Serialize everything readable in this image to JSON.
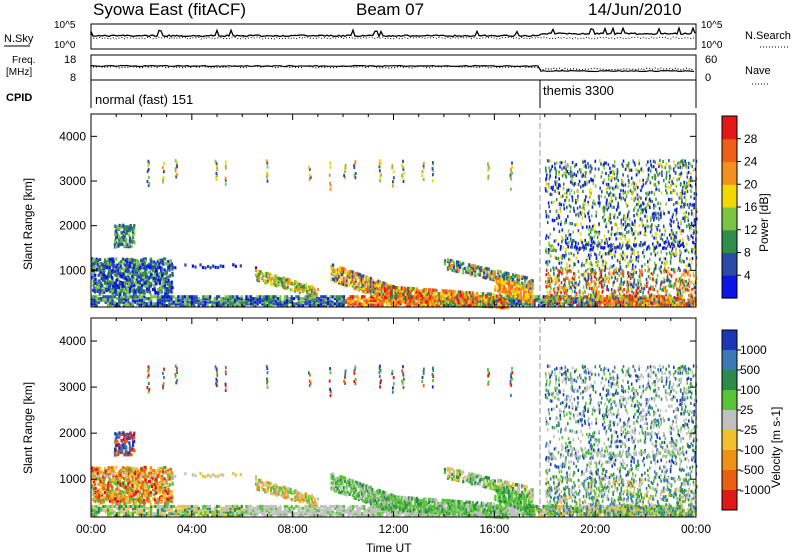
{
  "header": {
    "title": "Syowa East (fitACF)",
    "beam": "Beam 07",
    "date": "14/Jun/2010"
  },
  "status_panels": {
    "nsky_label": "N.Sky",
    "nsky_tick_top": "10^5",
    "nsky_tick_bottom": "10^0",
    "nsearch_label": "N.Search",
    "nsearch_tick_top": "10^5",
    "nsearch_tick_bottom": "10^0",
    "freq_label_line1": "Freq.",
    "freq_label_line2": "[MHz]",
    "freq_tick_top": "18",
    "freq_tick_bottom": "8",
    "nave_label": "Nave",
    "nave_tick_top": "60",
    "nave_tick_bottom": "0",
    "cpid_label": "CPID",
    "cpid_segments": [
      {
        "name": "normal (fast) 151",
        "start_hour": 0
      },
      {
        "name": "themis 3300",
        "start_hour": 18
      }
    ]
  },
  "chart_data": [
    {
      "type": "heatmap",
      "parameter": "Power",
      "ylabel": "Slant Range [km]",
      "xlabel": "Time UT",
      "ylim": [
        180,
        4500
      ],
      "y_ticks": [
        1000,
        2000,
        3000,
        4000
      ],
      "xlim_hours": [
        0,
        24
      ],
      "x_tick_labels": [
        "00:00",
        "04:00",
        "08:00",
        "12:00",
        "16:00",
        "20:00",
        "00:00"
      ],
      "colorbar_label": "Power [dB]",
      "colorbar_ticks": [
        "4",
        "8",
        "12",
        "16",
        "20",
        "24",
        "28"
      ],
      "colorbar_colors": [
        "#0a14e6",
        "#2a4aa8",
        "#2f8c4c",
        "#7cc444",
        "#f0d800",
        "#f49020",
        "#ec6018",
        "#e41818"
      ],
      "color_range": [
        0,
        32
      ]
    },
    {
      "type": "heatmap",
      "parameter": "Velocity",
      "ylabel": "Slant Range [km]",
      "xlabel": "Time UT",
      "ylim": [
        180,
        4500
      ],
      "y_ticks": [
        1000,
        2000,
        3000,
        4000
      ],
      "xlim_hours": [
        0,
        24
      ],
      "x_tick_labels": [
        "00:00",
        "04:00",
        "08:00",
        "12:00",
        "16:00",
        "20:00",
        "00:00"
      ],
      "colorbar_label": "Velocity [m s-1]",
      "colorbar_ticks": [
        "1000",
        "500",
        "100",
        "25",
        "-25",
        "-100",
        "-500",
        "-1000"
      ],
      "colorbar_colors": [
        "#1a38b4",
        "#3c78b8",
        "#2e8a48",
        "#58c438",
        "#c0c0c0",
        "#f0c030",
        "#f09018",
        "#e86010",
        "#e01818"
      ]
    }
  ],
  "colors": {
    "axis": "#000000",
    "background": "#ffffff",
    "ground_scatter": "#bdbdbd",
    "mode_change_line": "#9a9a9a"
  }
}
